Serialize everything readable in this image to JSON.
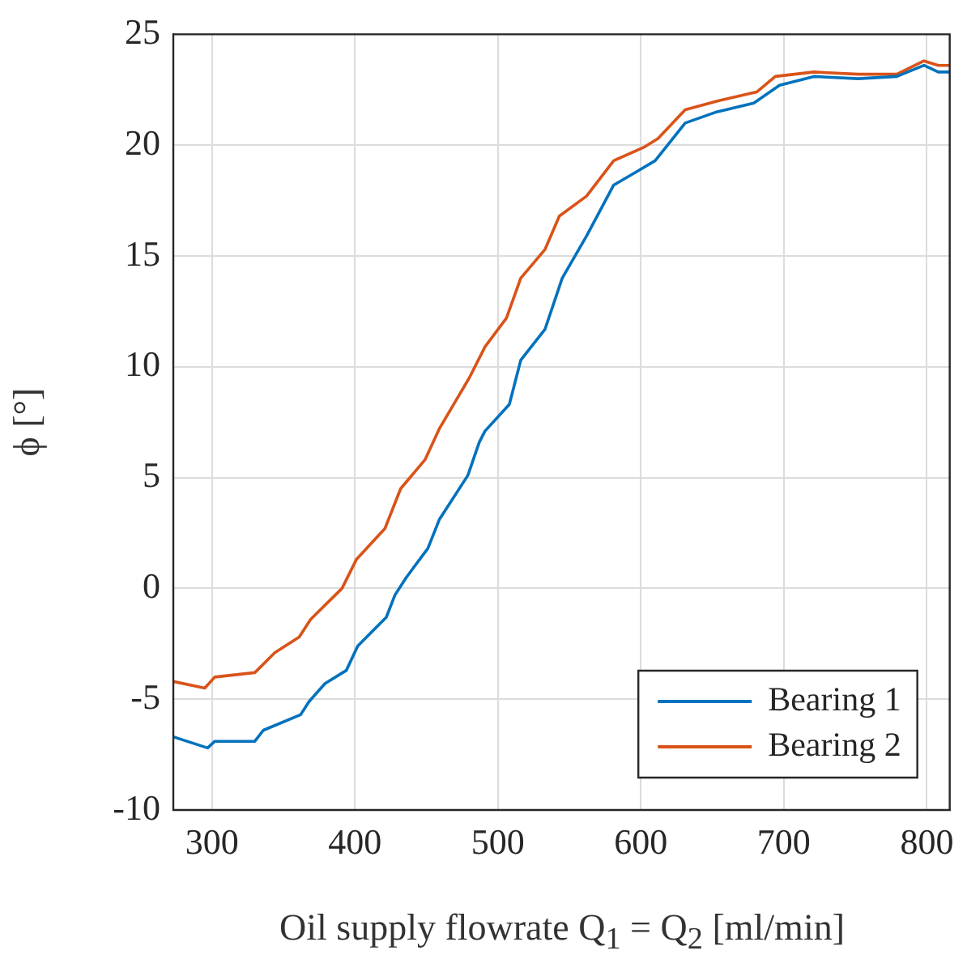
{
  "chart_data": {
    "type": "line",
    "xlabel": "Oil supply flowrate Q$_{1}$ = Q$_{2}$ [ml/min]",
    "ylabel": "ϕ [°]",
    "xlim": [
      273,
      816
    ],
    "xticks": [
      300,
      400,
      500,
      600,
      700,
      800
    ],
    "ylim": [
      -10,
      25
    ],
    "yticks": [
      -10,
      -5,
      0,
      5,
      10,
      15,
      20,
      25
    ],
    "grid": true,
    "legend": "bottom right",
    "marker": "none",
    "line_style": "solid",
    "series": [
      {
        "name": "Bearing 1",
        "color": "#0072bd",
        "x": [
          273,
          297,
          302,
          330,
          336,
          362,
          368,
          379,
          394,
          402,
          422,
          428,
          436,
          451,
          459,
          479,
          487,
          491,
          508,
          516,
          533,
          545,
          562,
          581,
          597,
          610,
          631,
          653,
          679,
          697,
          721,
          752,
          779,
          798,
          808,
          816
        ],
        "values": [
          -6.7,
          -7.2,
          -6.9,
          -6.9,
          -6.4,
          -5.7,
          -5.1,
          -4.3,
          -3.7,
          -2.6,
          -1.3,
          -0.3,
          0.5,
          1.8,
          3.1,
          5.1,
          6.6,
          7.1,
          8.3,
          10.3,
          11.7,
          14.0,
          15.9,
          18.2,
          18.8,
          19.3,
          21.0,
          21.5,
          21.9,
          22.7,
          23.1,
          23.0,
          23.1,
          23.6,
          23.3,
          23.3
        ]
      },
      {
        "name": "Bearing 2",
        "color": "#d95319",
        "x": [
          273,
          295,
          302,
          330,
          344,
          361,
          369,
          391,
          401,
          421,
          432,
          449,
          459,
          480,
          491,
          506,
          516,
          533,
          543,
          562,
          581,
          602,
          612,
          631,
          654,
          681,
          694,
          721,
          752,
          779,
          798,
          808,
          816
        ],
        "values": [
          -4.2,
          -4.5,
          -4.0,
          -3.8,
          -2.9,
          -2.2,
          -1.4,
          0.0,
          1.3,
          2.7,
          4.5,
          5.8,
          7.2,
          9.5,
          10.9,
          12.2,
          14.0,
          15.3,
          16.8,
          17.7,
          19.3,
          19.9,
          20.3,
          21.6,
          22.0,
          22.4,
          23.1,
          23.3,
          23.2,
          23.2,
          23.8,
          23.6,
          23.6
        ]
      }
    ]
  }
}
